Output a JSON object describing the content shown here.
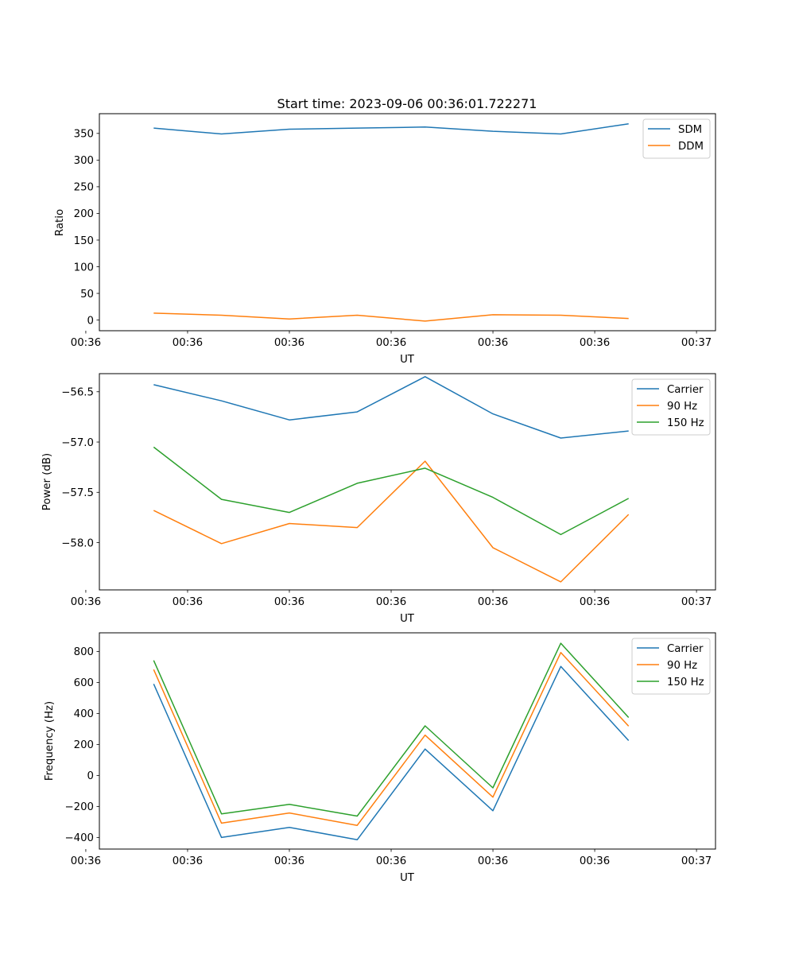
{
  "figure_title": "Start time: 2023-09-06 00:36:01.722271",
  "chart_data": [
    {
      "type": "line",
      "title": "Start time: 2023-09-06 00:36:01.722271",
      "xlabel": "UT",
      "ylabel": "Ratio",
      "x": [
        1,
        2,
        3,
        4,
        5,
        6,
        7,
        8
      ],
      "xlim": [
        0.2,
        9.28
      ],
      "x_ticks": [
        0,
        1.5,
        3,
        4.5,
        6,
        7.5,
        9
      ],
      "x_tick_labels": [
        "00:36",
        "00:36",
        "00:36",
        "00:36",
        "00:36",
        "00:36",
        "00:36"
      ],
      "x_tick_label_last": "00:37",
      "ylim": [
        -20,
        387
      ],
      "y_ticks": [
        0,
        50,
        100,
        150,
        200,
        250,
        300,
        350
      ],
      "y_tick_labels": [
        "0",
        "50",
        "100",
        "150",
        "200",
        "250",
        "300",
        "350"
      ],
      "legend_position": "top-right",
      "series": [
        {
          "name": "SDM",
          "color": "#1f77b4",
          "values": [
            360,
            349,
            358,
            360,
            362,
            354,
            349,
            368
          ]
        },
        {
          "name": "DDM",
          "color": "#ff7f0e",
          "values": [
            13,
            9,
            2,
            9,
            -2,
            10,
            9,
            3
          ]
        }
      ]
    },
    {
      "type": "line",
      "title": "",
      "xlabel": "UT",
      "ylabel": "Power (dB)",
      "x": [
        1,
        2,
        3,
        4,
        5,
        6,
        7,
        8
      ],
      "xlim": [
        0.2,
        9.28
      ],
      "x_ticks": [
        0,
        1.5,
        3,
        4.5,
        6,
        7.5,
        9
      ],
      "x_tick_labels": [
        "00:36",
        "00:36",
        "00:36",
        "00:36",
        "00:36",
        "00:36",
        "00:36"
      ],
      "x_tick_label_last": "00:37",
      "ylim": [
        -58.47,
        -56.32
      ],
      "y_ticks": [
        -58.0,
        -57.5,
        -57.0,
        -56.5
      ],
      "y_tick_labels": [
        "−58.0",
        "−57.5",
        "−57.0",
        "−56.5"
      ],
      "legend_position": "top-right",
      "series": [
        {
          "name": "Carrier",
          "color": "#1f77b4",
          "values": [
            -56.43,
            -56.59,
            -56.78,
            -56.7,
            -56.35,
            -56.72,
            -56.96,
            -56.89
          ]
        },
        {
          "name": "90 Hz",
          "color": "#ff7f0e",
          "values": [
            -57.68,
            -58.01,
            -57.81,
            -57.85,
            -57.19,
            -58.05,
            -58.39,
            -57.72
          ]
        },
        {
          "name": "150 Hz",
          "color": "#2ca02c",
          "values": [
            -57.05,
            -57.57,
            -57.7,
            -57.41,
            -57.26,
            -57.55,
            -57.92,
            -57.56
          ]
        }
      ]
    },
    {
      "type": "line",
      "title": "",
      "xlabel": "UT",
      "ylabel": "Frequency (Hz)",
      "x": [
        1,
        2,
        3,
        4,
        5,
        6,
        7,
        8
      ],
      "xlim": [
        0.2,
        9.28
      ],
      "x_ticks": [
        0,
        1.5,
        3,
        4.5,
        6,
        7.5,
        9
      ],
      "x_tick_labels": [
        "00:36",
        "00:36",
        "00:36",
        "00:36",
        "00:36",
        "00:36",
        "00:36"
      ],
      "x_tick_label_last": "00:37",
      "ylim": [
        -475,
        920
      ],
      "y_ticks": [
        -400,
        -200,
        0,
        200,
        400,
        600,
        800
      ],
      "y_tick_labels": [
        "−400",
        "−200",
        "0",
        "200",
        "400",
        "600",
        "800"
      ],
      "legend_position": "top-right",
      "series": [
        {
          "name": "Carrier",
          "color": "#1f77b4",
          "values": [
            590,
            -400,
            -335,
            -415,
            170,
            -228,
            703,
            225
          ]
        },
        {
          "name": "90 Hz",
          "color": "#ff7f0e",
          "values": [
            683,
            -308,
            -242,
            -322,
            260,
            -140,
            793,
            318
          ]
        },
        {
          "name": "150 Hz",
          "color": "#2ca02c",
          "values": [
            742,
            -248,
            -187,
            -262,
            320,
            -80,
            853,
            374
          ]
        }
      ]
    }
  ]
}
